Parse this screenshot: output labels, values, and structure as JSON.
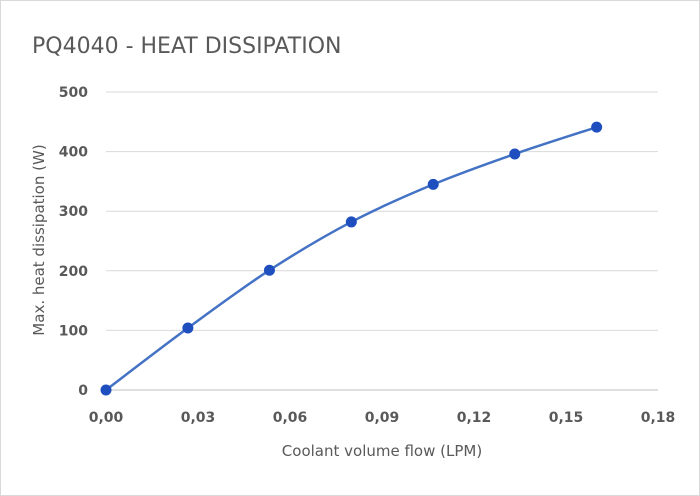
{
  "chart_data": {
    "type": "line",
    "title": "PQ4040 - HEAT DISSIPATION",
    "xlabel": "Coolant volume flow (LPM)",
    "ylabel": "Max. heat dissipation (W)",
    "xlim": [
      0,
      0.18
    ],
    "ylim": [
      0,
      500
    ],
    "x_ticks": [
      "0,00",
      "0,03",
      "0,06",
      "0,09",
      "0,12",
      "0,15",
      "0,18"
    ],
    "y_ticks": [
      "0",
      "100",
      "200",
      "300",
      "400",
      "500"
    ],
    "grid": true,
    "legend": "none",
    "series": [
      {
        "color": "#4472c4",
        "marker_color": "#1f4fbf",
        "x": [
          0.0,
          0.0267,
          0.0533,
          0.08,
          0.1067,
          0.1333,
          0.16
        ],
        "y": [
          0,
          104,
          201,
          282,
          345,
          396,
          441
        ]
      }
    ]
  }
}
